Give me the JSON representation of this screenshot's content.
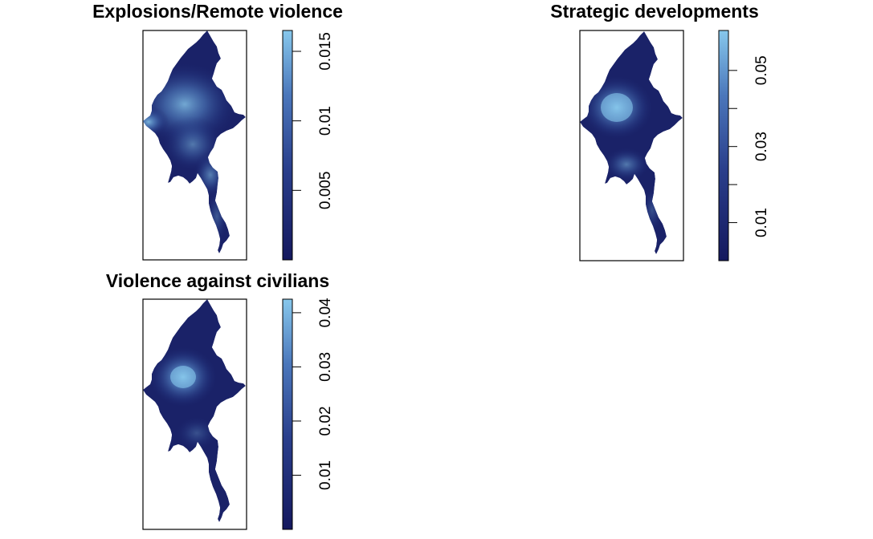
{
  "colors": {
    "scale_low": "#14185e",
    "scale_mid": "#3f64ad",
    "scale_high": "#87c8ec",
    "frame": "#000000",
    "background": "#ffffff"
  },
  "panels": [
    {
      "title": "Explosions/Remote violence",
      "legend": {
        "min": 0.0,
        "max": 0.0165,
        "ticks": [
          {
            "value": 0.005,
            "label": "0.005"
          },
          {
            "value": 0.01,
            "label": "0.01"
          },
          {
            "value": 0.015,
            "label": "0.015"
          }
        ]
      }
    },
    {
      "title": "Strategic developments",
      "legend": {
        "min": 0.0,
        "max": 0.0605,
        "ticks": [
          {
            "value": 0.01,
            "label": "0.01"
          },
          {
            "value": 0.02,
            "label": ""
          },
          {
            "value": 0.03,
            "label": "0.03"
          },
          {
            "value": 0.04,
            "label": ""
          },
          {
            "value": 0.05,
            "label": "0.05"
          }
        ]
      }
    },
    {
      "title": "Violence against civilians",
      "legend": {
        "min": 0.0,
        "max": 0.0425,
        "ticks": [
          {
            "value": 0.01,
            "label": "0.01"
          },
          {
            "value": 0.02,
            "label": "0.02"
          },
          {
            "value": 0.03,
            "label": "0.03"
          },
          {
            "value": 0.04,
            "label": "0.04"
          }
        ]
      }
    }
  ]
}
